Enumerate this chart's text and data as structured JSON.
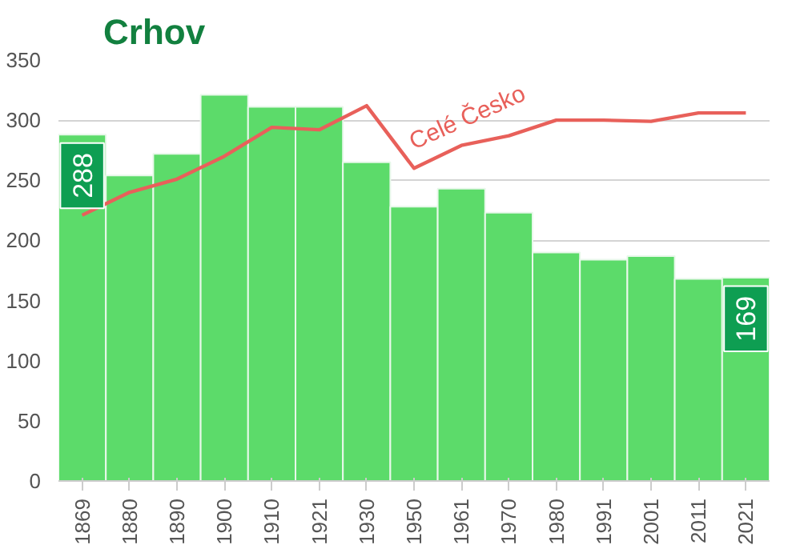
{
  "chart_data": {
    "type": "bar",
    "title": "Crhov",
    "categories": [
      "1869",
      "1880",
      "1890",
      "1900",
      "1910",
      "1921",
      "1930",
      "1950",
      "1961",
      "1970",
      "1980",
      "1991",
      "2001",
      "2011",
      "2021"
    ],
    "values": [
      288,
      254,
      272,
      321,
      311,
      311,
      265,
      228,
      243,
      223,
      190,
      184,
      187,
      168,
      169
    ],
    "color": "#5cdb6a",
    "value_labels": [
      "288",
      null,
      null,
      null,
      null,
      null,
      null,
      null,
      null,
      null,
      null,
      null,
      null,
      null,
      "169"
    ],
    "series": [
      {
        "type": "line",
        "name": "Celé Česko",
        "color": "#e8605a",
        "values": [
          221,
          240,
          251,
          270,
          294,
          292,
          312,
          260,
          279,
          287,
          300,
          300,
          299,
          306,
          306
        ]
      }
    ],
    "ylim": [
      0,
      350
    ],
    "yticks": [
      0,
      50,
      100,
      150,
      200,
      250,
      300,
      350
    ],
    "grid": "y"
  }
}
